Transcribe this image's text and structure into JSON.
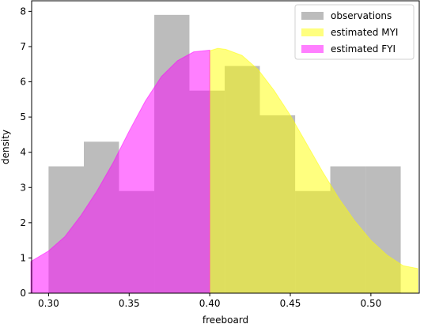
{
  "chart_data": {
    "type": "histogram",
    "xlabel": "freeboard",
    "ylabel": "density",
    "xlim": [
      0.2895,
      0.53
    ],
    "ylim": [
      0,
      8.3
    ],
    "xticks": [
      0.3,
      0.35,
      0.4,
      0.45,
      0.5
    ],
    "xtick_labels": [
      "0.30",
      "0.35",
      "0.40",
      "0.45",
      "0.50"
    ],
    "yticks": [
      0,
      1,
      2,
      3,
      4,
      5,
      6,
      7,
      8
    ],
    "ytick_labels": [
      "0",
      "1",
      "2",
      "3",
      "4",
      "5",
      "6",
      "7",
      "8"
    ],
    "legend_position": "top-right",
    "grid": false,
    "histogram": {
      "name": "observations",
      "color": "#a0a0a0",
      "bin_edges": [
        0.3,
        0.3219,
        0.3437,
        0.3656,
        0.3874,
        0.4093,
        0.4311,
        0.453,
        0.4748,
        0.4967,
        0.5185
      ],
      "densities": [
        3.6,
        4.3,
        2.9,
        7.9,
        5.75,
        6.45,
        5.05,
        2.9,
        3.6,
        3.6
      ]
    },
    "series": [
      {
        "name": "estimated MYI",
        "color": "#ffff00",
        "x": [
          0.4,
          0.405,
          0.41,
          0.42,
          0.43,
          0.44,
          0.45,
          0.46,
          0.47,
          0.48,
          0.49,
          0.5,
          0.51,
          0.52,
          0.529
        ],
        "y": [
          6.88,
          6.95,
          6.92,
          6.75,
          6.35,
          5.75,
          5.05,
          4.25,
          3.45,
          2.7,
          2.05,
          1.5,
          1.08,
          0.78,
          0.7
        ]
      },
      {
        "name": "estimated FYI",
        "color": "#ff00ff",
        "x": [
          0.289,
          0.3,
          0.31,
          0.32,
          0.33,
          0.34,
          0.35,
          0.36,
          0.37,
          0.38,
          0.39,
          0.4
        ],
        "y": [
          0.9,
          1.2,
          1.6,
          2.2,
          2.9,
          3.7,
          4.6,
          5.45,
          6.15,
          6.6,
          6.85,
          6.9
        ]
      }
    ]
  }
}
